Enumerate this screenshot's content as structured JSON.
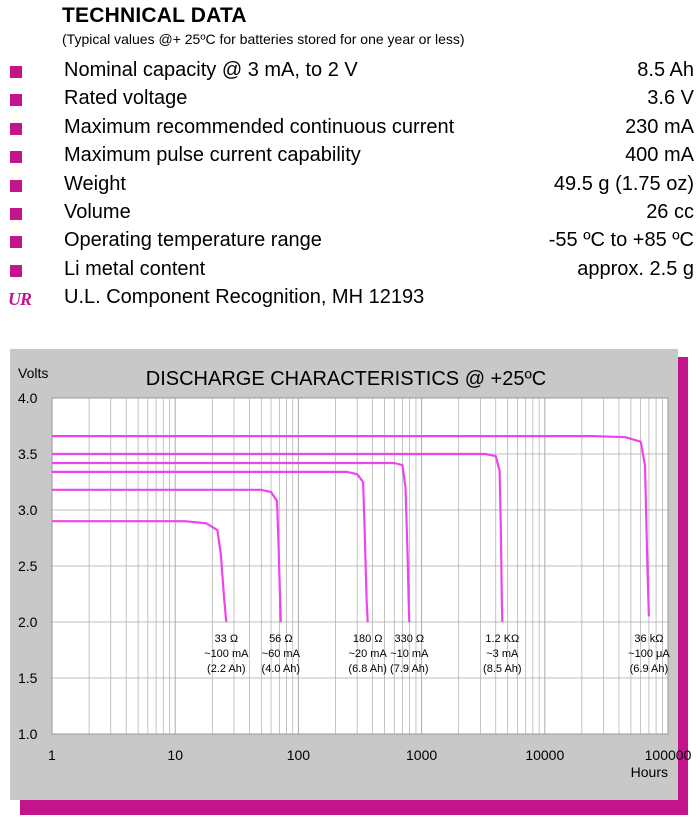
{
  "header": {
    "title": "TECHNICAL DATA",
    "subtitle": "(Typical values @+ 25ºC for batteries stored for one year or less)"
  },
  "specs": [
    {
      "label": "Nominal capacity @ 3 mA, to 2 V",
      "value": "8.5 Ah"
    },
    {
      "label": "Rated voltage",
      "value": "3.6 V"
    },
    {
      "label": "Maximum recommended continuous current",
      "value": "230 mA"
    },
    {
      "label": "Maximum pulse current capability",
      "value": "400 mA"
    },
    {
      "label": "Weight",
      "value": "49.5 g (1.75 oz)"
    },
    {
      "label": "Volume",
      "value": "26 cc"
    },
    {
      "label": "Operating temperature range",
      "value": "-55 ºC to +85 ºC"
    },
    {
      "label": "Li metal content",
      "value": "approx. 2.5 g"
    }
  ],
  "certification": {
    "mark": "UR",
    "text": "U.L. Component Recognition, MH 12193"
  },
  "colors": {
    "accent": "#c4148c",
    "curve": "#ee44ee",
    "panel": "#c8c8c8",
    "grid": "#aaaaaa"
  },
  "chart_data": {
    "type": "line",
    "title": "DISCHARGE CHARACTERISTICS @ +25ºC",
    "ylabel": "Volts",
    "xlabel": "Hours",
    "x_scale": "log",
    "xlim": [
      1,
      100000
    ],
    "ylim": [
      1.0,
      4.0
    ],
    "x_ticks": [
      1,
      10,
      100,
      1000,
      10000,
      100000
    ],
    "x_tick_labels": [
      "1",
      "10",
      "100",
      "1000",
      "10000",
      "100000"
    ],
    "y_ticks": [
      1.0,
      1.5,
      2.0,
      2.5,
      3.0,
      3.5,
      4.0
    ],
    "y_tick_labels": [
      "1.0",
      "1.5",
      "2.0",
      "2.5",
      "3.0",
      "3.5",
      "4.0"
    ],
    "grid": true,
    "series": [
      {
        "label_lines": [
          "33 Ω",
          "~100 mA",
          "(2.2 Ah)"
        ],
        "points": [
          [
            1,
            2.9
          ],
          [
            12,
            2.9
          ],
          [
            18,
            2.88
          ],
          [
            22,
            2.82
          ],
          [
            23.5,
            2.6
          ],
          [
            25,
            2.2
          ],
          [
            26,
            2.0
          ]
        ]
      },
      {
        "label_lines": [
          "56 Ω",
          "~60 mA",
          "(4.0 Ah)"
        ],
        "points": [
          [
            1,
            3.18
          ],
          [
            50,
            3.18
          ],
          [
            60,
            3.16
          ],
          [
            67,
            3.08
          ],
          [
            69,
            2.7
          ],
          [
            71,
            2.2
          ],
          [
            72,
            2.0
          ]
        ]
      },
      {
        "label_lines": [
          "180 Ω",
          "~20 mA",
          "(6.8 Ah)"
        ],
        "points": [
          [
            1,
            3.34
          ],
          [
            250,
            3.34
          ],
          [
            300,
            3.32
          ],
          [
            335,
            3.25
          ],
          [
            345,
            2.8
          ],
          [
            358,
            2.2
          ],
          [
            365,
            2.0
          ]
        ]
      },
      {
        "label_lines": [
          "330 Ω",
          "~10 mA",
          "(7.9 Ah)"
        ],
        "points": [
          [
            1,
            3.42
          ],
          [
            600,
            3.42
          ],
          [
            700,
            3.4
          ],
          [
            740,
            3.2
          ],
          [
            770,
            2.6
          ],
          [
            785,
            2.2
          ],
          [
            795,
            2.0
          ]
        ]
      },
      {
        "label_lines": [
          "1.2 KΩ",
          "~3 mA",
          "(8.5 Ah)"
        ],
        "points": [
          [
            1,
            3.5
          ],
          [
            3300,
            3.5
          ],
          [
            4000,
            3.48
          ],
          [
            4300,
            3.35
          ],
          [
            4400,
            2.8
          ],
          [
            4480,
            2.2
          ],
          [
            4520,
            2.0
          ]
        ]
      },
      {
        "label_lines": [
          "36 kΩ",
          "~100 μA",
          "(6.9 Ah)"
        ],
        "points": [
          [
            1,
            3.66
          ],
          [
            25000,
            3.66
          ],
          [
            45000,
            3.65
          ],
          [
            60000,
            3.61
          ],
          [
            65000,
            3.4
          ],
          [
            68000,
            2.5
          ],
          [
            70000,
            2.05
          ]
        ]
      }
    ]
  }
}
